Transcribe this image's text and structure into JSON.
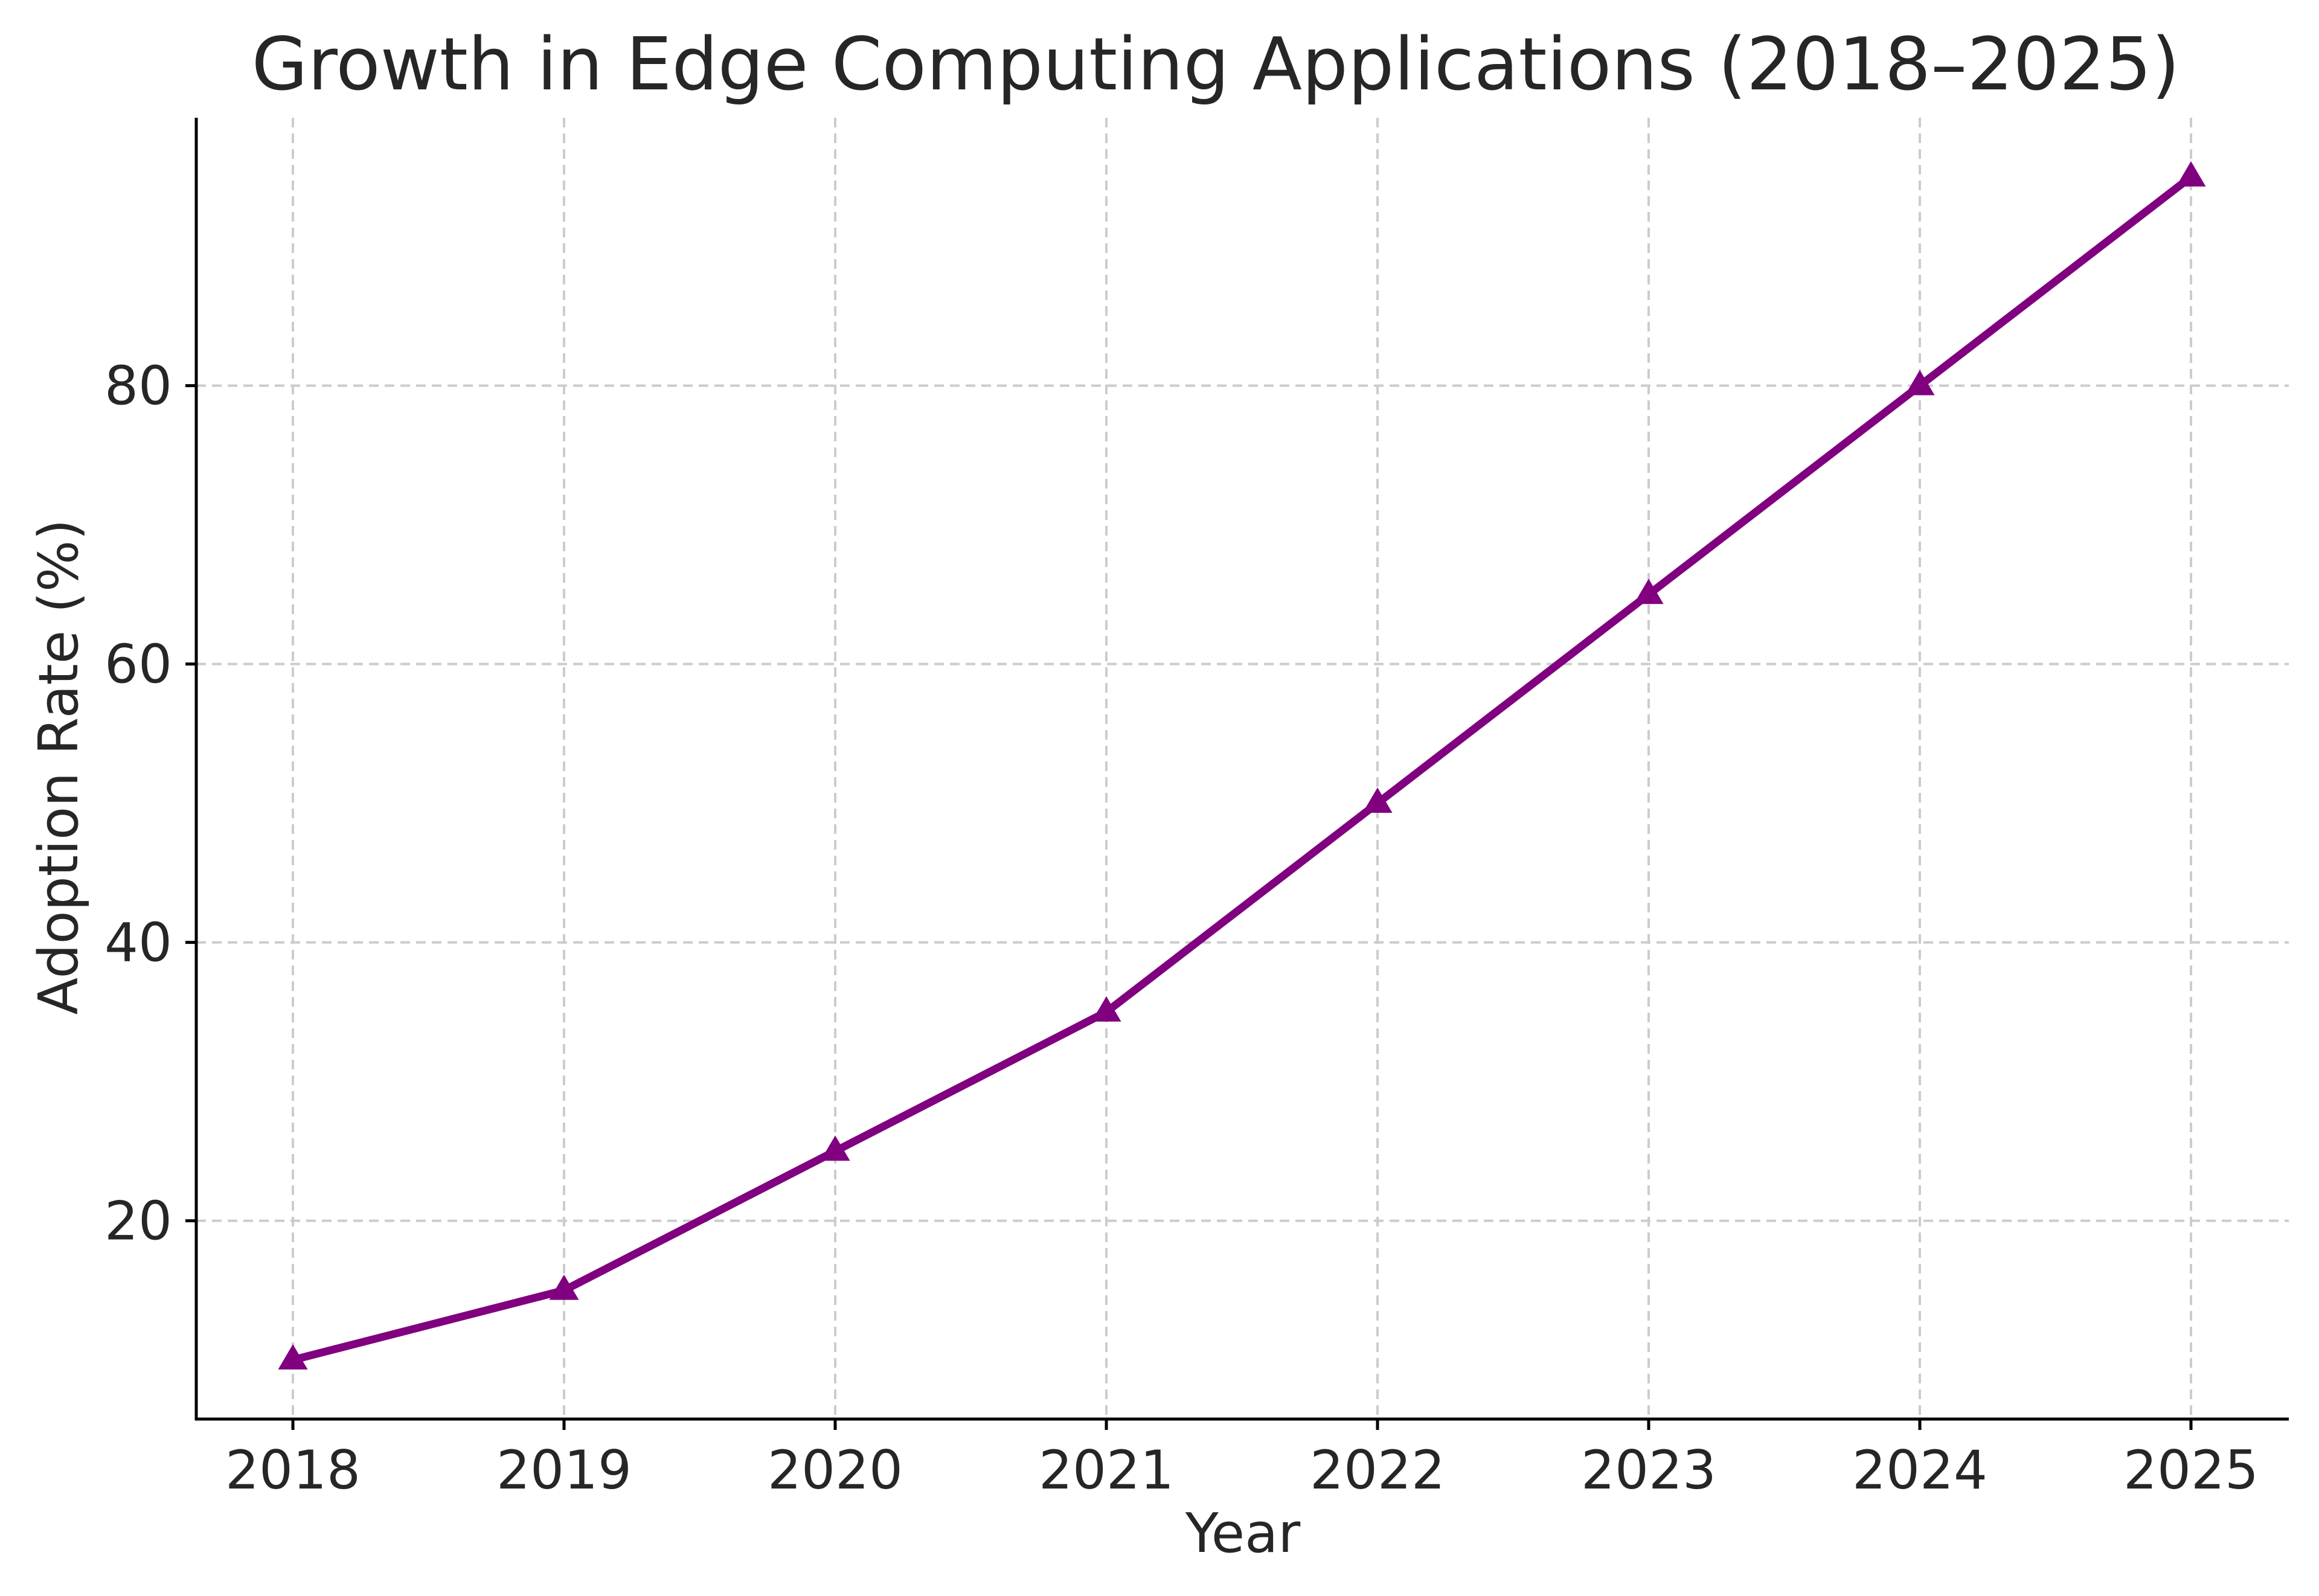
{
  "chart_data": {
    "type": "line",
    "title": "Growth in Edge Computing Applications (2018–2025)",
    "xlabel": "Year",
    "ylabel": "Adoption Rate (%)",
    "categories": [
      "2018",
      "2019",
      "2020",
      "2021",
      "2022",
      "2023",
      "2024",
      "2025"
    ],
    "series": [
      {
        "name": "Adoption Rate",
        "values": [
          10,
          15,
          25,
          35,
          50,
          65,
          80,
          95
        ],
        "color": "#800080",
        "marker": "triangle"
      }
    ],
    "yticks": [
      "20",
      "40",
      "60",
      "80"
    ],
    "ylim": [
      5.75,
      99.25
    ],
    "grid": true,
    "legend": "none"
  }
}
